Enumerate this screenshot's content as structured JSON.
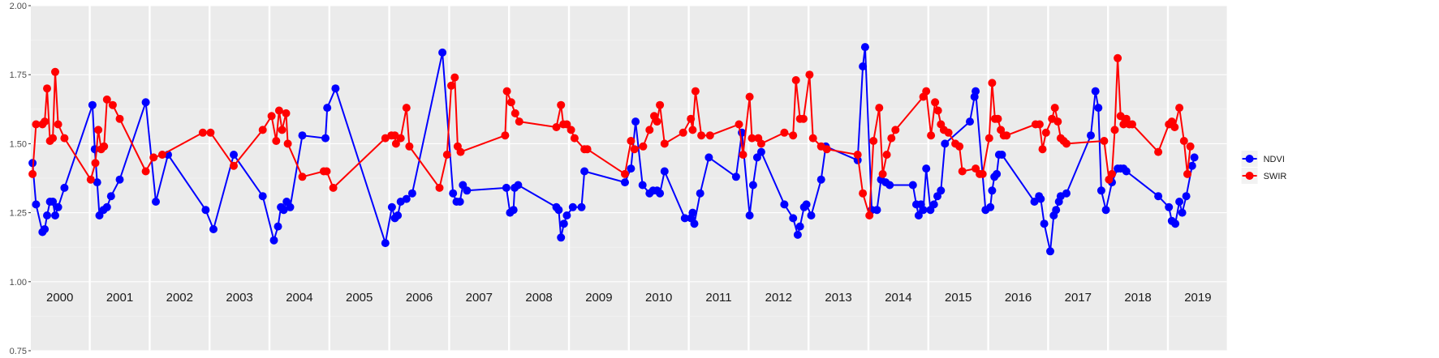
{
  "chart_data": {
    "type": "line",
    "title": "",
    "xlabel": "",
    "ylabel": "",
    "ylim": [
      0.75,
      2.0
    ],
    "yticks": [
      "0.75",
      "1.00",
      "1.25",
      "1.50",
      "1.75",
      "2.00"
    ],
    "grid": true,
    "legend_position": "right",
    "facets": [
      "2000",
      "2001",
      "2002",
      "2003",
      "2004",
      "2005",
      "2006",
      "2007",
      "2008",
      "2009",
      "2010",
      "2011",
      "2012",
      "2013",
      "2014",
      "2015",
      "2016",
      "2017",
      "2018",
      "2019"
    ],
    "series": [
      {
        "name": "NDVI",
        "color": "#0000ff",
        "points": [
          [
            2000.03,
            1.43
          ],
          [
            2000.09,
            1.28
          ],
          [
            2000.2,
            1.18
          ],
          [
            2000.24,
            1.19
          ],
          [
            2000.28,
            1.24
          ],
          [
            2000.33,
            1.29
          ],
          [
            2000.38,
            1.29
          ],
          [
            2000.42,
            1.24
          ],
          [
            2000.47,
            1.27
          ],
          [
            2000.58,
            1.34
          ],
          [
            2001.03,
            1.64
          ],
          [
            2001.07,
            1.48
          ],
          [
            2001.11,
            1.36
          ],
          [
            2001.15,
            1.24
          ],
          [
            2001.22,
            1.26
          ],
          [
            2001.28,
            1.27
          ],
          [
            2001.35,
            1.31
          ],
          [
            2001.5,
            1.37
          ],
          [
            2001.95,
            1.65
          ],
          [
            2002.09,
            1.29
          ],
          [
            2002.3,
            1.46
          ],
          [
            2002.95,
            1.26
          ],
          [
            2003.05,
            1.19
          ],
          [
            2003.4,
            1.46
          ],
          [
            2003.9,
            1.31
          ],
          [
            2004.06,
            1.15
          ],
          [
            2004.13,
            1.2
          ],
          [
            2004.18,
            1.27
          ],
          [
            2004.23,
            1.26
          ],
          [
            2004.28,
            1.29
          ],
          [
            2004.34,
            1.27
          ],
          [
            2004.55,
            1.53
          ],
          [
            2004.95,
            1.52
          ],
          [
            2004.98,
            1.63
          ],
          [
            2005.09,
            1.7
          ],
          [
            2005.95,
            1.14
          ],
          [
            2006.03,
            1.27
          ],
          [
            2006.08,
            1.23
          ],
          [
            2006.13,
            1.24
          ],
          [
            2006.18,
            1.29
          ],
          [
            2006.28,
            1.3
          ],
          [
            2006.38,
            1.32
          ],
          [
            2006.9,
            1.83
          ],
          [
            2007.05,
            1.32
          ],
          [
            2007.11,
            1.29
          ],
          [
            2007.17,
            1.29
          ],
          [
            2007.22,
            1.35
          ],
          [
            2007.29,
            1.33
          ],
          [
            2007.97,
            1.34
          ],
          [
            2008.0,
            1.25
          ],
          [
            2008.06,
            1.26
          ],
          [
            2008.08,
            1.34
          ],
          [
            2008.14,
            1.35
          ],
          [
            2008.8,
            1.27
          ],
          [
            2008.84,
            1.26
          ],
          [
            2008.88,
            1.16
          ],
          [
            2008.93,
            1.21
          ],
          [
            2008.98,
            1.24
          ],
          [
            2009.05,
            1.27
          ],
          [
            2009.2,
            1.27
          ],
          [
            2009.25,
            1.4
          ],
          [
            2009.95,
            1.36
          ],
          [
            2010.02,
            1.41
          ],
          [
            2010.1,
            1.58
          ],
          [
            2010.22,
            1.35
          ],
          [
            2010.34,
            1.32
          ],
          [
            2010.4,
            1.33
          ],
          [
            2010.47,
            1.33
          ],
          [
            2010.52,
            1.32
          ],
          [
            2010.6,
            1.4
          ],
          [
            2010.95,
            1.23
          ],
          [
            2011.02,
            1.23
          ],
          [
            2011.05,
            1.25
          ],
          [
            2011.08,
            1.21
          ],
          [
            2011.18,
            1.32
          ],
          [
            2011.33,
            1.45
          ],
          [
            2011.8,
            1.38
          ],
          [
            2011.9,
            1.54
          ],
          [
            2012.0,
            1.24
          ],
          [
            2012.06,
            1.35
          ],
          [
            2012.13,
            1.45
          ],
          [
            2012.2,
            1.47
          ],
          [
            2012.6,
            1.28
          ],
          [
            2012.75,
            1.23
          ],
          [
            2012.83,
            1.17
          ],
          [
            2012.87,
            1.2
          ],
          [
            2012.94,
            1.27
          ],
          [
            2012.98,
            1.28
          ],
          [
            2013.03,
            1.24
          ],
          [
            2013.2,
            1.37
          ],
          [
            2013.28,
            1.49
          ],
          [
            2013.83,
            1.44
          ],
          [
            2013.92,
            1.78
          ],
          [
            2013.96,
            1.85
          ],
          [
            2014.04,
            1.26
          ],
          [
            2014.13,
            1.26
          ],
          [
            2014.2,
            1.37
          ],
          [
            2014.28,
            1.36
          ],
          [
            2014.35,
            1.35
          ],
          [
            2014.75,
            1.35
          ],
          [
            2014.81,
            1.28
          ],
          [
            2014.85,
            1.24
          ],
          [
            2014.89,
            1.28
          ],
          [
            2014.93,
            1.26
          ],
          [
            2014.98,
            1.41
          ],
          [
            2015.02,
            1.26
          ],
          [
            2015.08,
            1.28
          ],
          [
            2015.14,
            1.31
          ],
          [
            2015.2,
            1.33
          ],
          [
            2015.27,
            1.5
          ],
          [
            2015.7,
            1.58
          ],
          [
            2015.78,
            1.67
          ],
          [
            2015.8,
            1.69
          ],
          [
            2015.97,
            1.26
          ],
          [
            2016.02,
            1.27
          ],
          [
            2016.05,
            1.33
          ],
          [
            2016.09,
            1.38
          ],
          [
            2016.13,
            1.39
          ],
          [
            2016.17,
            1.46
          ],
          [
            2016.22,
            1.46
          ],
          [
            2016.78,
            1.29
          ],
          [
            2016.86,
            1.31
          ],
          [
            2016.89,
            1.3
          ],
          [
            2016.95,
            1.21
          ],
          [
            2017.02,
            1.11
          ],
          [
            2017.08,
            1.24
          ],
          [
            2017.12,
            1.26
          ],
          [
            2017.17,
            1.29
          ],
          [
            2017.2,
            1.31
          ],
          [
            2017.3,
            1.32
          ],
          [
            2017.72,
            1.53
          ],
          [
            2017.8,
            1.69
          ],
          [
            2017.85,
            1.63
          ],
          [
            2017.9,
            1.33
          ],
          [
            2017.98,
            1.26
          ],
          [
            2018.05,
            1.36
          ],
          [
            2018.15,
            1.41
          ],
          [
            2018.2,
            1.41
          ],
          [
            2018.25,
            1.41
          ],
          [
            2018.3,
            1.4
          ],
          [
            2018.85,
            1.31
          ],
          [
            2019.0,
            1.27
          ],
          [
            2019.05,
            1.22
          ],
          [
            2019.11,
            1.21
          ],
          [
            2019.18,
            1.29
          ],
          [
            2019.23,
            1.25
          ],
          [
            2019.3,
            1.31
          ],
          [
            2019.4,
            1.42
          ],
          [
            2019.44,
            1.45
          ]
        ]
      },
      {
        "name": "SWIR",
        "color": "#ff0000",
        "points": [
          [
            2000.03,
            1.39
          ],
          [
            2000.09,
            1.57
          ],
          [
            2000.2,
            1.57
          ],
          [
            2000.24,
            1.58
          ],
          [
            2000.28,
            1.7
          ],
          [
            2000.33,
            1.51
          ],
          [
            2000.38,
            1.52
          ],
          [
            2000.42,
            1.76
          ],
          [
            2000.47,
            1.57
          ],
          [
            2000.58,
            1.52
          ],
          [
            2001.0,
            1.37
          ],
          [
            2001.08,
            1.43
          ],
          [
            2001.13,
            1.55
          ],
          [
            2001.18,
            1.48
          ],
          [
            2001.23,
            1.49
          ],
          [
            2001.28,
            1.66
          ],
          [
            2001.38,
            1.64
          ],
          [
            2001.5,
            1.59
          ],
          [
            2001.95,
            1.4
          ],
          [
            2002.05,
            1.45
          ],
          [
            2002.2,
            1.46
          ],
          [
            2002.9,
            1.54
          ],
          [
            2003.0,
            1.54
          ],
          [
            2003.4,
            1.42
          ],
          [
            2003.9,
            1.55
          ],
          [
            2004.02,
            1.6
          ],
          [
            2004.1,
            1.51
          ],
          [
            2004.15,
            1.62
          ],
          [
            2004.2,
            1.55
          ],
          [
            2004.27,
            1.61
          ],
          [
            2004.3,
            1.5
          ],
          [
            2004.55,
            1.38
          ],
          [
            2004.92,
            1.4
          ],
          [
            2004.97,
            1.4
          ],
          [
            2005.05,
            1.34
          ],
          [
            2005.95,
            1.52
          ],
          [
            2006.02,
            1.53
          ],
          [
            2006.08,
            1.53
          ],
          [
            2006.1,
            1.5
          ],
          [
            2006.18,
            1.52
          ],
          [
            2006.28,
            1.63
          ],
          [
            2006.33,
            1.49
          ],
          [
            2006.85,
            1.34
          ],
          [
            2006.98,
            1.46
          ],
          [
            2007.02,
            1.71
          ],
          [
            2007.08,
            1.74
          ],
          [
            2007.13,
            1.49
          ],
          [
            2007.18,
            1.47
          ],
          [
            2007.95,
            1.53
          ],
          [
            2007.98,
            1.69
          ],
          [
            2008.02,
            1.65
          ],
          [
            2008.09,
            1.61
          ],
          [
            2008.16,
            1.58
          ],
          [
            2008.8,
            1.56
          ],
          [
            2008.88,
            1.64
          ],
          [
            2008.92,
            1.57
          ],
          [
            2008.98,
            1.57
          ],
          [
            2009.02,
            1.55
          ],
          [
            2009.08,
            1.52
          ],
          [
            2009.25,
            1.48
          ],
          [
            2009.3,
            1.48
          ],
          [
            2009.95,
            1.39
          ],
          [
            2010.02,
            1.51
          ],
          [
            2010.08,
            1.48
          ],
          [
            2010.23,
            1.49
          ],
          [
            2010.34,
            1.55
          ],
          [
            2010.42,
            1.6
          ],
          [
            2010.47,
            1.58
          ],
          [
            2010.52,
            1.64
          ],
          [
            2010.6,
            1.5
          ],
          [
            2010.92,
            1.54
          ],
          [
            2011.02,
            1.59
          ],
          [
            2011.05,
            1.55
          ],
          [
            2011.1,
            1.69
          ],
          [
            2011.2,
            1.53
          ],
          [
            2011.35,
            1.53
          ],
          [
            2011.85,
            1.57
          ],
          [
            2011.92,
            1.46
          ],
          [
            2012.0,
            1.67
          ],
          [
            2012.04,
            1.52
          ],
          [
            2012.15,
            1.52
          ],
          [
            2012.2,
            1.5
          ],
          [
            2012.6,
            1.54
          ],
          [
            2012.75,
            1.53
          ],
          [
            2012.8,
            1.73
          ],
          [
            2012.87,
            1.59
          ],
          [
            2012.93,
            1.59
          ],
          [
            2013.0,
            1.75
          ],
          [
            2013.06,
            1.52
          ],
          [
            2013.2,
            1.49
          ],
          [
            2013.3,
            1.48
          ],
          [
            2013.83,
            1.46
          ],
          [
            2013.92,
            1.32
          ],
          [
            2014.0,
            1.24
          ],
          [
            2014.07,
            1.51
          ],
          [
            2014.17,
            1.63
          ],
          [
            2014.23,
            1.39
          ],
          [
            2014.3,
            1.46
          ],
          [
            2014.38,
            1.52
          ],
          [
            2014.45,
            1.55
          ],
          [
            2014.93,
            1.67
          ],
          [
            2014.98,
            1.69
          ],
          [
            2015.03,
            1.53
          ],
          [
            2015.1,
            1.65
          ],
          [
            2015.15,
            1.62
          ],
          [
            2015.2,
            1.57
          ],
          [
            2015.25,
            1.55
          ],
          [
            2015.33,
            1.54
          ],
          [
            2015.45,
            1.5
          ],
          [
            2015.52,
            1.49
          ],
          [
            2015.57,
            1.4
          ],
          [
            2015.8,
            1.41
          ],
          [
            2015.87,
            1.39
          ],
          [
            2015.92,
            1.39
          ],
          [
            2016.0,
            1.52
          ],
          [
            2016.05,
            1.72
          ],
          [
            2016.1,
            1.59
          ],
          [
            2016.15,
            1.59
          ],
          [
            2016.2,
            1.55
          ],
          [
            2016.25,
            1.53
          ],
          [
            2016.3,
            1.53
          ],
          [
            2016.8,
            1.57
          ],
          [
            2016.87,
            1.57
          ],
          [
            2016.92,
            1.48
          ],
          [
            2016.98,
            1.54
          ],
          [
            2017.05,
            1.59
          ],
          [
            2017.1,
            1.63
          ],
          [
            2017.15,
            1.58
          ],
          [
            2017.2,
            1.52
          ],
          [
            2017.25,
            1.51
          ],
          [
            2017.3,
            1.5
          ],
          [
            2017.95,
            1.51
          ],
          [
            2018.0,
            1.37
          ],
          [
            2018.05,
            1.39
          ],
          [
            2018.1,
            1.55
          ],
          [
            2018.15,
            1.81
          ],
          [
            2018.2,
            1.6
          ],
          [
            2018.25,
            1.57
          ],
          [
            2018.3,
            1.59
          ],
          [
            2018.35,
            1.57
          ],
          [
            2018.4,
            1.57
          ],
          [
            2018.85,
            1.47
          ],
          [
            2019.0,
            1.57
          ],
          [
            2019.05,
            1.58
          ],
          [
            2019.1,
            1.56
          ],
          [
            2019.18,
            1.63
          ],
          [
            2019.26,
            1.51
          ],
          [
            2019.32,
            1.39
          ],
          [
            2019.37,
            1.49
          ]
        ]
      }
    ]
  }
}
